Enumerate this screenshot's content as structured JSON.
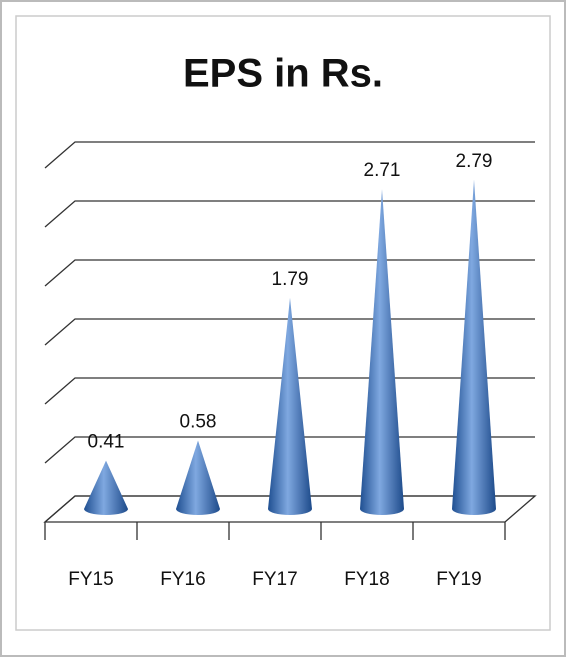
{
  "chart_data": {
    "type": "cone",
    "title": "EPS in Rs.",
    "categories": [
      "FY15",
      "FY16",
      "FY17",
      "FY18",
      "FY19"
    ],
    "values": [
      0.41,
      0.58,
      1.79,
      2.71,
      2.79
    ],
    "color": "#3a6fb5",
    "ylim": [
      0,
      3
    ],
    "yticks": [
      0,
      0.5,
      1,
      1.5,
      2,
      2.5,
      3
    ],
    "grid": true
  }
}
